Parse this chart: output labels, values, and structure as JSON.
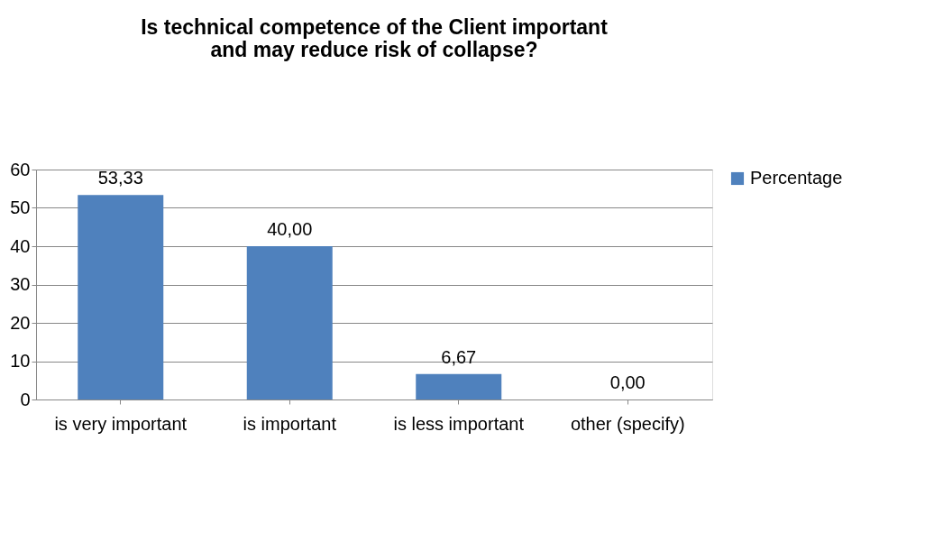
{
  "chart_data": {
    "type": "bar",
    "title": "Is technical competence of the Client important and may reduce risk of collapse?",
    "categories": [
      "is very important",
      "is important",
      "is less important",
      "other (specify)"
    ],
    "series": [
      {
        "name": "Percentage",
        "color": "#4f81bd",
        "values": [
          53.33,
          40.0,
          6.67,
          0.0
        ]
      }
    ],
    "value_labels": [
      "53,33",
      "40,00",
      "6,67",
      "0,00"
    ],
    "ylim": [
      0,
      60
    ],
    "yticks": [
      0,
      10,
      20,
      30,
      40,
      50,
      60
    ],
    "grid": "y",
    "legend": "right"
  }
}
